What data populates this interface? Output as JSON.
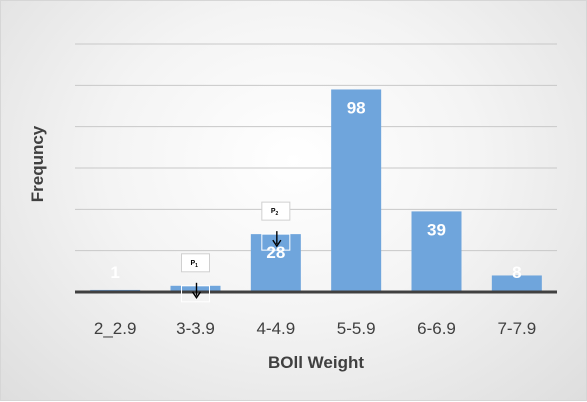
{
  "chart_data": {
    "type": "bar",
    "categories": [
      "2_2.9",
      "3-3.9",
      "4-4.9",
      "5-5.9",
      "6-6.9",
      "7-7.9"
    ],
    "values": [
      1,
      3,
      28,
      98,
      39,
      8
    ],
    "data_labels": [
      "1",
      "",
      "28",
      "98",
      "39",
      "8"
    ],
    "xlabel": "BOll Weight",
    "ylabel": "Frequncy",
    "ylim": [
      0,
      120
    ],
    "grid": true,
    "bar_color": "#6fa5dc",
    "annotations": [
      {
        "category": "3-3.9",
        "label": "P",
        "subscript": "1",
        "arrow": "down-arrow"
      },
      {
        "category": "4-4.9",
        "label": "P",
        "subscript": "2",
        "arrow": "down-arrow"
      }
    ]
  }
}
